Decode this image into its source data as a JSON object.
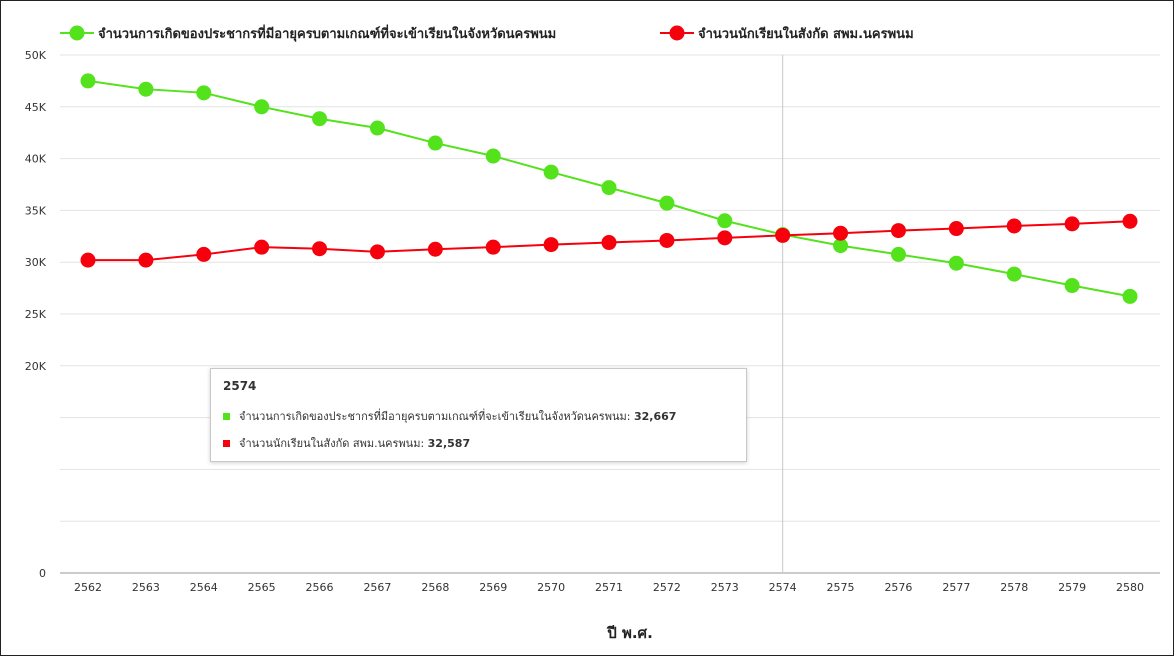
{
  "chart_data": {
    "type": "line",
    "xlabel": "ปี พ.ศ.",
    "ylabel": "",
    "ylim": [
      0,
      50000
    ],
    "yticks": [
      {
        "value": 0,
        "label": "0"
      },
      {
        "value": 5000,
        "label": ""
      },
      {
        "value": 10000,
        "label": ""
      },
      {
        "value": 15000,
        "label": ""
      },
      {
        "value": 20000,
        "label": "20K"
      },
      {
        "value": 25000,
        "label": "25K"
      },
      {
        "value": 30000,
        "label": "30K"
      },
      {
        "value": 35000,
        "label": "35K"
      },
      {
        "value": 40000,
        "label": "40K"
      },
      {
        "value": 45000,
        "label": "45K"
      },
      {
        "value": 50000,
        "label": "50K"
      }
    ],
    "x": [
      "2562",
      "2563",
      "2564",
      "2565",
      "2566",
      "2567",
      "2568",
      "2569",
      "2570",
      "2571",
      "2572",
      "2573",
      "2574",
      "2575",
      "2576",
      "2577",
      "2578",
      "2579",
      "2580"
    ],
    "grid": true,
    "legend_position": "top-left",
    "series": [
      {
        "name": "จำนวนการเกิดของประชากรที่มีอายุครบตามเกณฑ์ที่จะเข้าเรียนในจังหวัดนครพนม",
        "color": "#53e21c",
        "values": [
          47500,
          46700,
          46350,
          45000,
          43850,
          42950,
          41500,
          40250,
          38700,
          37200,
          35700,
          34000,
          32667,
          31600,
          30750,
          29900,
          28850,
          27750,
          26700
        ]
      },
      {
        "name": "จำนวนนักเรียนในสังกัด สพม.นครพนม",
        "color": "#f5000c",
        "values": [
          30200,
          30200,
          30750,
          31450,
          31300,
          31000,
          31250,
          31450,
          31700,
          31900,
          32100,
          32350,
          32587,
          32800,
          33050,
          33250,
          33500,
          33700,
          33950
        ]
      }
    ],
    "tooltip": {
      "title": "2574",
      "rows": [
        {
          "label": "จำนวนการเกิดของประชากรที่มีอายุครบตามเกณฑ์ที่จะเข้าเรียนในจังหวัดนครพนม:",
          "value": "32,667",
          "color": "#53e21c"
        },
        {
          "label": "จำนวนนักเรียนในสังกัด สพม.นครพนม:",
          "value": "32,587",
          "color": "#f5000c"
        }
      ]
    },
    "crosshair_x": "2574"
  }
}
